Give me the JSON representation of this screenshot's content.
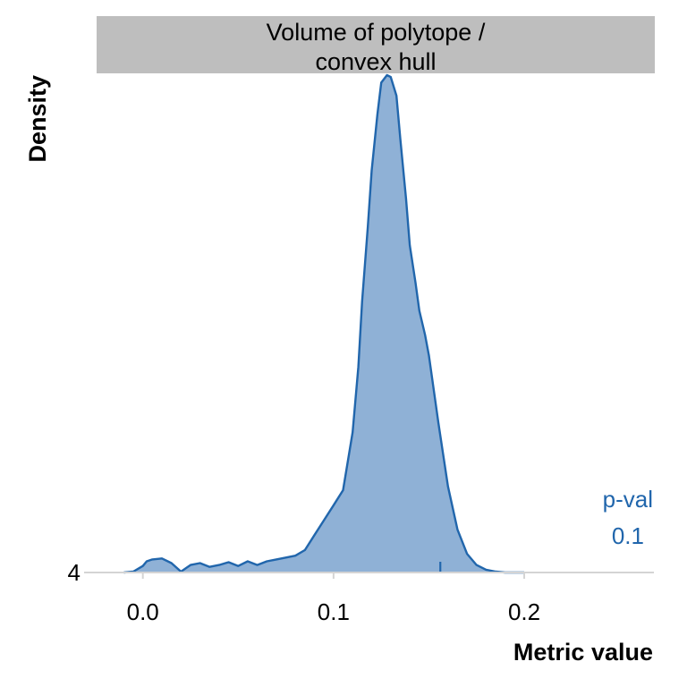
{
  "chart_data": {
    "type": "area",
    "facet_title_lines": [
      "Volume of polytope /",
      "convex hull"
    ],
    "xlabel": "Metric value",
    "ylabel": "Density",
    "xlim": [
      -0.028,
      0.268
    ],
    "ylim": [
      4,
      30.6
    ],
    "x_ticks": [
      0.0,
      0.1,
      0.2
    ],
    "x_tick_labels": [
      "0.0",
      "0.1",
      "0.2"
    ],
    "y_ticks": [
      4
    ],
    "y_tick_labels": [
      "4"
    ],
    "grid": false,
    "series": [
      {
        "color": "#2166ac",
        "fill": "#8fb1d6",
        "x": [
          -0.01,
          -0.005,
          0.0,
          0.002,
          0.005,
          0.01,
          0.015,
          0.02,
          0.025,
          0.03,
          0.035,
          0.04,
          0.045,
          0.05,
          0.055,
          0.06,
          0.065,
          0.07,
          0.075,
          0.08,
          0.085,
          0.09,
          0.095,
          0.1,
          0.105,
          0.11,
          0.113,
          0.115,
          0.118,
          0.12,
          0.123,
          0.125,
          0.128,
          0.13,
          0.133,
          0.135,
          0.138,
          0.14,
          0.143,
          0.145,
          0.148,
          0.15,
          0.155,
          0.16,
          0.165,
          0.17,
          0.175,
          0.18,
          0.185,
          0.19,
          0.195,
          0.2
        ],
        "y": [
          4.0,
          4.05,
          4.35,
          4.6,
          4.7,
          4.75,
          4.5,
          4.05,
          4.4,
          4.5,
          4.3,
          4.4,
          4.55,
          4.35,
          4.6,
          4.4,
          4.6,
          4.7,
          4.8,
          4.9,
          5.2,
          6.0,
          6.8,
          7.6,
          8.4,
          11.5,
          15.0,
          18.5,
          22.5,
          25.5,
          28.5,
          30.2,
          30.6,
          30.5,
          29.5,
          27.2,
          24.0,
          21.5,
          19.5,
          18.0,
          16.7,
          15.6,
          12.0,
          8.6,
          6.3,
          5.0,
          4.4,
          4.15,
          4.05,
          4.0,
          4.0,
          4.0
        ]
      }
    ],
    "observed_x": 0.156,
    "annotation": {
      "label": "p-val",
      "value": "0.1",
      "color": "#2166ac"
    }
  }
}
